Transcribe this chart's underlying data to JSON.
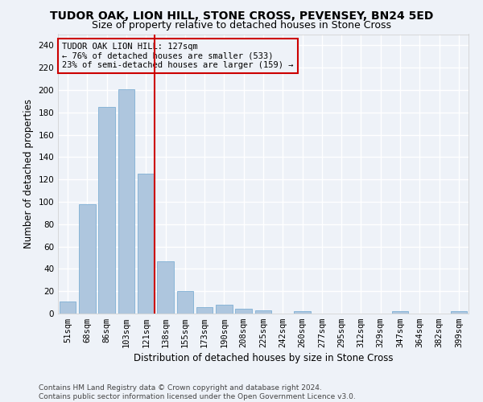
{
  "title": "TUDOR OAK, LION HILL, STONE CROSS, PEVENSEY, BN24 5ED",
  "subtitle": "Size of property relative to detached houses in Stone Cross",
  "xlabel": "Distribution of detached houses by size in Stone Cross",
  "ylabel": "Number of detached properties",
  "categories": [
    "51sqm",
    "68sqm",
    "86sqm",
    "103sqm",
    "121sqm",
    "138sqm",
    "155sqm",
    "173sqm",
    "190sqm",
    "208sqm",
    "225sqm",
    "242sqm",
    "260sqm",
    "277sqm",
    "295sqm",
    "312sqm",
    "329sqm",
    "347sqm",
    "364sqm",
    "382sqm",
    "399sqm"
  ],
  "values": [
    11,
    98,
    185,
    201,
    125,
    47,
    20,
    6,
    8,
    4,
    3,
    0,
    2,
    0,
    0,
    0,
    0,
    2,
    0,
    0,
    2
  ],
  "bar_color": "#aec6de",
  "bar_edge_color": "#7fafd4",
  "vline_x": 4.45,
  "vline_color": "#cc0000",
  "annotation_title": "TUDOR OAK LION HILL: 127sqm",
  "annotation_line1": "← 76% of detached houses are smaller (533)",
  "annotation_line2": "23% of semi-detached houses are larger (159) →",
  "annotation_box_color": "#cc0000",
  "ylim": [
    0,
    250
  ],
  "yticks": [
    0,
    20,
    40,
    60,
    80,
    100,
    120,
    140,
    160,
    180,
    200,
    220,
    240
  ],
  "footer_line1": "Contains HM Land Registry data © Crown copyright and database right 2024.",
  "footer_line2": "Contains public sector information licensed under the Open Government Licence v3.0.",
  "background_color": "#eef2f8",
  "grid_color": "#ffffff",
  "title_fontsize": 10,
  "subtitle_fontsize": 9,
  "xlabel_fontsize": 8.5,
  "ylabel_fontsize": 8.5,
  "tick_fontsize": 7.5,
  "annotation_fontsize": 7.5,
  "footer_fontsize": 6.5
}
